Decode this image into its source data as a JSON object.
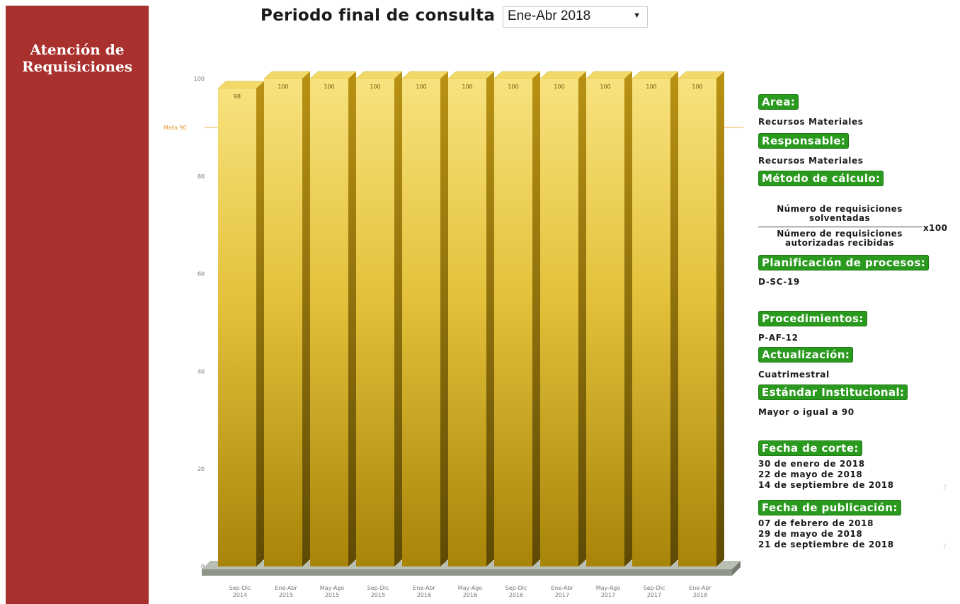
{
  "sidebar": {
    "title": "Atención de\nRequisiciones"
  },
  "header": {
    "label": "Periodo final de consulta",
    "period_selected": "Ene-Abr 2018"
  },
  "colors": {
    "sidebar": "#a8302d",
    "label_bg": "#2a9a1e",
    "bar_top": "#f8e27e",
    "bar_bottom": "#a88408",
    "goal_line": "#f0b050"
  },
  "panel": {
    "area_label": "Area:",
    "area_value": "Recursos Materiales",
    "responsable_label": "Responsable:",
    "responsable_value": "Recursos Materiales",
    "metodo_label": "Método de cálculo:",
    "formula_numerator": "Número de requisiciones\nsolventadas",
    "formula_denominator": "Número de requisiciones\nautorizadas recibidas",
    "formula_multiplier": "x100",
    "planificacion_label": "Planificación de procesos:",
    "planificacion_value": "D-SC-19",
    "procedimientos_label": "Procedimientos:",
    "procedimientos_value": "P-AF-12",
    "actualizacion_label": "Actualización:",
    "actualizacion_value": "Cuatrimestral",
    "estandar_label": "Estándar Institucional:",
    "estandar_value": "Mayor o igual a 90",
    "fecha_corte_label": "Fecha de corte:",
    "fecha_corte_value": "30 de enero de 2018\n22 de mayo de 2018\n14 de septiembre de 2018",
    "fecha_publicacion_label": "Fecha de publicación:",
    "fecha_publicacion_value": "07 de febrero de 2018\n29 de mayo de 2018\n21 de septiembre de 2018"
  },
  "chart_data": {
    "type": "bar",
    "categories": [
      "Sep-Dic\n2014",
      "Ene-Abr\n2015",
      "May-Ago\n2015",
      "Sep-Dic\n2015",
      "Ene-Abr\n2016",
      "May-Ago\n2016",
      "Sep-Dic\n2016",
      "Ene-Abr\n2017",
      "May-Ago\n2017",
      "Sep-Dic\n2017",
      "Ene-Abr\n2018"
    ],
    "values": [
      98,
      100,
      100,
      100,
      100,
      100,
      100,
      100,
      100,
      100,
      100
    ],
    "value_labels": [
      "98",
      "100",
      "100",
      "100",
      "100",
      "100",
      "100",
      "100",
      "100",
      "100",
      "100"
    ],
    "yticks": [
      0,
      20,
      40,
      60,
      80,
      100
    ],
    "ylim": [
      0,
      100
    ],
    "goal": {
      "value": 90,
      "label": "Meta 90"
    },
    "grid": false,
    "three_d": true
  }
}
